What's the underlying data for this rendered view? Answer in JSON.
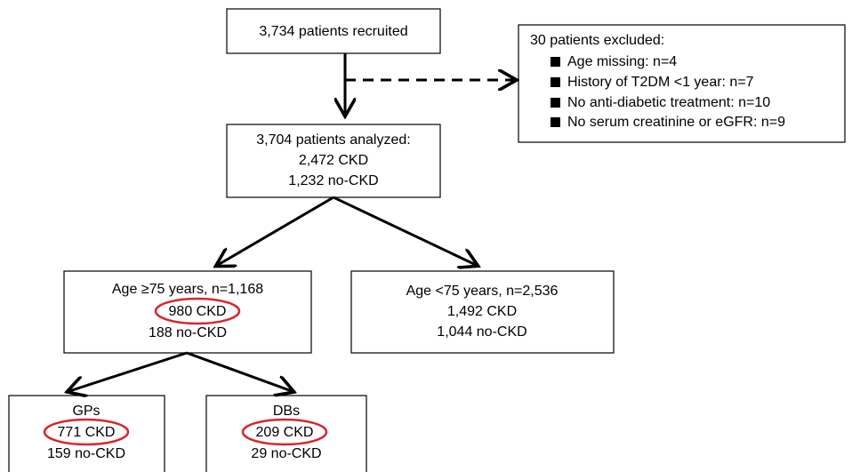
{
  "nodes": [
    {
      "lines": [
        "3,734 patients recruited"
      ]
    },
    {
      "lines": [
        "3,704 patients analyzed:",
        "2,472 CKD",
        "1,232 no-CKD"
      ]
    },
    {
      "lines": [
        "Age ≥75 years, n=1,168",
        "980 CKD",
        "188 no-CKD"
      ]
    },
    {
      "lines": [
        "Age <75 years, n=2,536",
        "1,492 CKD",
        "1,044 no-CKD"
      ]
    },
    {
      "lines": [
        "GPs",
        "771 CKD",
        "159 no-CKD"
      ]
    },
    {
      "lines": [
        "DBs",
        "209 CKD",
        "29 no-CKD"
      ]
    }
  ],
  "excluded": {
    "title": "30 patients excluded:",
    "items": [
      "Age missing: n=4",
      "History of T2DM <1 year: n=7",
      "No anti-diabetic treatment: n=10",
      "No serum creatinine or eGFR: n=9"
    ]
  }
}
